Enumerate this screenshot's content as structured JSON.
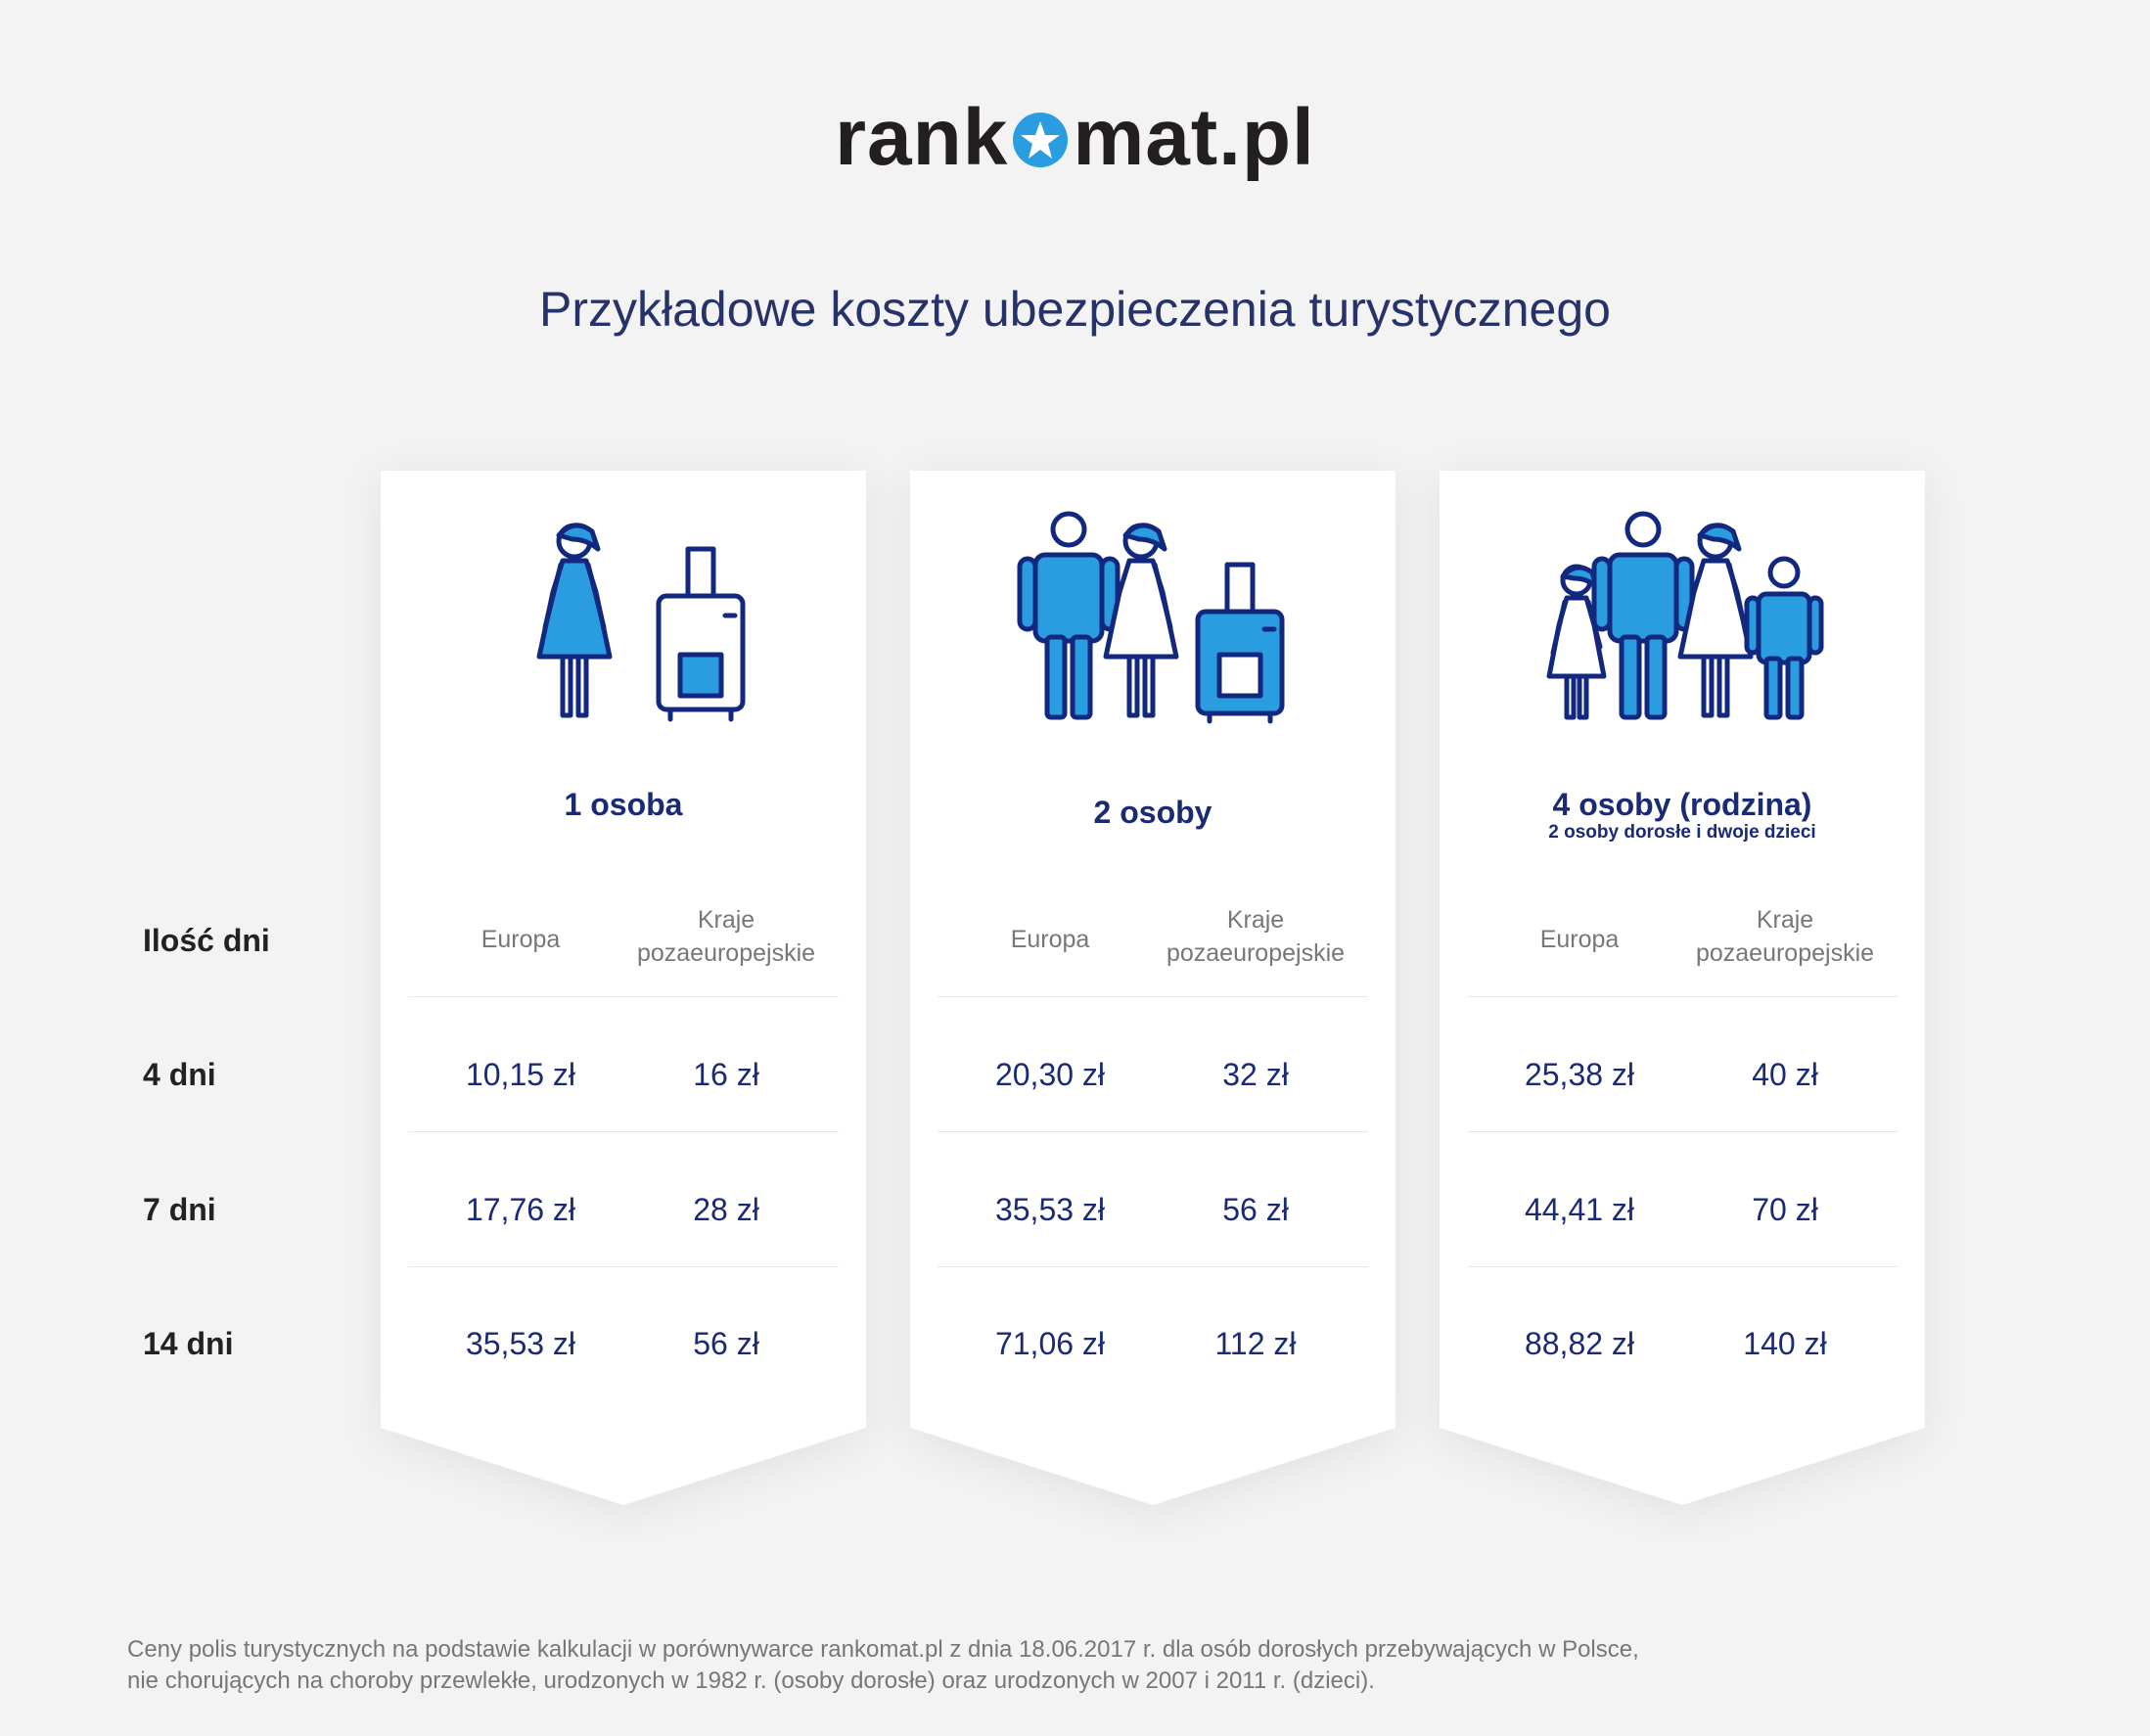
{
  "logo": {
    "before": "rank",
    "after": "mat.pl"
  },
  "title": "Przykładowe koszty ubezpieczenia turystycznego",
  "row_header": "Ilość dni",
  "rows": [
    "4 dni",
    "7 dni",
    "14 dni"
  ],
  "cards": [
    {
      "title": "1 osoba",
      "subtitle": "",
      "icon": "woman-with-suitcase-icon",
      "col_a": "Europa",
      "col_b": [
        "Kraje",
        "pozaeuropejskie"
      ],
      "values": [
        [
          "10,15 zł",
          "16 zł"
        ],
        [
          "17,76 zł",
          "28 zł"
        ],
        [
          "35,53 zł",
          "56 zł"
        ]
      ]
    },
    {
      "title": "2 osoby",
      "subtitle": "",
      "icon": "couple-with-suitcase-icon",
      "col_a": "Europa",
      "col_b": [
        "Kraje",
        "pozaeuropejskie"
      ],
      "values": [
        [
          "20,30 zł",
          "32 zł"
        ],
        [
          "35,53 zł",
          "56 zł"
        ],
        [
          "71,06 zł",
          "112 zł"
        ]
      ]
    },
    {
      "title": "4 osoby (rodzina)",
      "subtitle": "2 osoby dorosłe i dwoje dzieci",
      "icon": "family-icon",
      "col_a": "Europa",
      "col_b": [
        "Kraje",
        "pozaeuropejskie"
      ],
      "values": [
        [
          "25,38 zł",
          "40 zł"
        ],
        [
          "44,41 zł",
          "70 zł"
        ],
        [
          "88,82 zł",
          "140 zł"
        ]
      ]
    }
  ],
  "footnote": [
    "Ceny polis turystycznych na podstawie kalkulacji w porównywarce rankomat.pl z dnia 18.06.2017 r. dla osób dorosłych przebywających w Polsce,",
    "nie chorujących na choroby przewlekłe, urodzonych w 1982 r. (osoby dorosłe) oraz urodzonych w 2007 i 2011 r. (dzieci)."
  ],
  "colors": {
    "navy": "#1b2a74",
    "blue": "#2a9ce0",
    "outline": "#12287f",
    "title": "#26336b"
  }
}
